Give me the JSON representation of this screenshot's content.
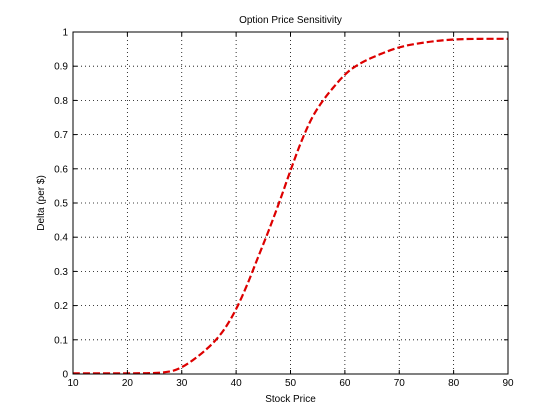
{
  "chart_data": {
    "type": "line",
    "title": "Option Price Sensitivity",
    "xlabel": "Stock Price",
    "ylabel": "Delta (per $)",
    "xlim": [
      10,
      90
    ],
    "ylim": [
      0,
      1
    ],
    "xticks": [
      10,
      20,
      30,
      40,
      50,
      60,
      70,
      80,
      90
    ],
    "yticks": [
      0,
      0.1,
      0.2,
      0.3,
      0.4,
      0.5,
      0.6,
      0.7,
      0.8,
      0.9,
      1
    ],
    "xtick_labels": [
      "10",
      "20",
      "30",
      "40",
      "50",
      "60",
      "70",
      "80",
      "90"
    ],
    "ytick_labels": [
      "0",
      "0.1",
      "0.2",
      "0.3",
      "0.4",
      "0.5",
      "0.6",
      "0.7",
      "0.8",
      "0.9",
      "1"
    ],
    "grid": true,
    "series": [
      {
        "color": "#dd0000",
        "line_style": "dashed",
        "x": [
          10,
          20,
          25,
          28,
          30,
          32,
          34,
          36,
          38,
          40,
          42,
          44,
          46,
          48,
          50,
          52,
          54,
          56,
          58,
          60,
          62,
          65,
          70,
          75,
          80,
          85,
          90
        ],
        "y": [
          0.002,
          0.002,
          0.003,
          0.008,
          0.02,
          0.04,
          0.065,
          0.095,
          0.135,
          0.19,
          0.26,
          0.34,
          0.42,
          0.505,
          0.595,
          0.68,
          0.75,
          0.8,
          0.84,
          0.875,
          0.9,
          0.925,
          0.955,
          0.97,
          0.978,
          0.98,
          0.98
        ]
      }
    ]
  }
}
